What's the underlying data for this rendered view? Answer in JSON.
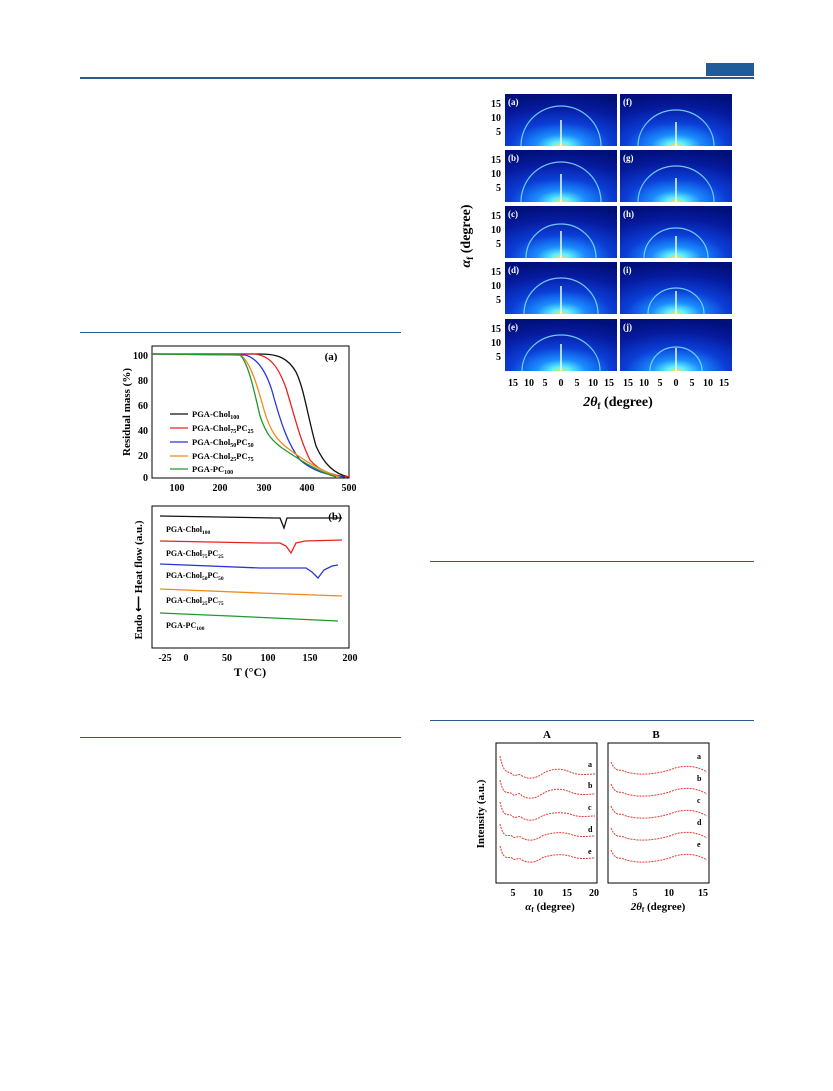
{
  "page": {
    "accent": "#1f5c99"
  },
  "tga": {
    "panel_label": "(a)",
    "ylabel": "Residual mass (%)",
    "xticks": [
      "100",
      "200",
      "300",
      "400",
      "500"
    ],
    "yticks": [
      "0",
      "20",
      "40",
      "60",
      "80",
      "100"
    ],
    "legend": [
      {
        "base": "PGA-Chol",
        "sub": "100",
        "rest": "",
        "sub2": "",
        "color": "#111111"
      },
      {
        "base": "PGA-Chol",
        "sub": "75",
        "rest": "PC",
        "sub2": "25",
        "color": "#e8231e"
      },
      {
        "base": "PGA-Chol",
        "sub": "50",
        "rest": "PC",
        "sub2": "50",
        "color": "#2a35d6"
      },
      {
        "base": "PGA-Chol",
        "sub": "25",
        "rest": "PC",
        "sub2": "75",
        "color": "#f08a1a"
      },
      {
        "base": "PGA-PC",
        "sub": "100",
        "rest": "",
        "sub2": "",
        "color": "#1f9a2e"
      }
    ]
  },
  "dsc": {
    "panel_label": "(b)",
    "ylabel": "Endo ⟵ Heat flow (a.u.)",
    "xlabel": "T (°C)",
    "xticks": [
      "-25",
      "0",
      "50",
      "100",
      "150",
      "200"
    ],
    "curve_labels": [
      {
        "base": "PGA-Chol",
        "sub": "100",
        "rest": "",
        "sub2": ""
      },
      {
        "base": "PGA-Chol",
        "sub": "75",
        "rest": "PC",
        "sub2": "25"
      },
      {
        "base": "PGA-Chol",
        "sub": "50",
        "rest": "PC",
        "sub2": "50"
      },
      {
        "base": "PGA-Chol",
        "sub": "25",
        "rest": "PC",
        "sub2": "75"
      },
      {
        "base": "PGA-PC",
        "sub": "100",
        "rest": "",
        "sub2": ""
      }
    ]
  },
  "gisaxs": {
    "panels": [
      "(a)",
      "(f)",
      "(b)",
      "(g)",
      "(c)",
      "(h)",
      "(d)",
      "(i)",
      "(e)",
      "(j)"
    ],
    "yticks": [
      "15",
      "10",
      "5"
    ],
    "xticks": [
      "15",
      "10",
      "5",
      "0",
      "5",
      "10",
      "15"
    ],
    "ylabel": "α",
    "ylabel_sub": "f",
    "ylabel_rest": " (degree)",
    "xlabel": "2θ",
    "xlabel_sub": "f",
    "xlabel_rest": " (degree)"
  },
  "profiles": {
    "title_a": "A",
    "title_b": "B",
    "ylabel": "Intensity (a.u.)",
    "curve_letters": [
      "a",
      "b",
      "c",
      "d",
      "e"
    ],
    "xticks_a": [
      "5",
      "10",
      "15",
      "20"
    ],
    "xticks_b": [
      "5",
      "10",
      "15"
    ],
    "xlabel_a": "α",
    "xlabel_a_sub": "f",
    "xlabel_a_rest": " (degree)",
    "xlabel_b": "2θ",
    "xlabel_b_sub": "f",
    "xlabel_b_rest": " (degree)"
  }
}
